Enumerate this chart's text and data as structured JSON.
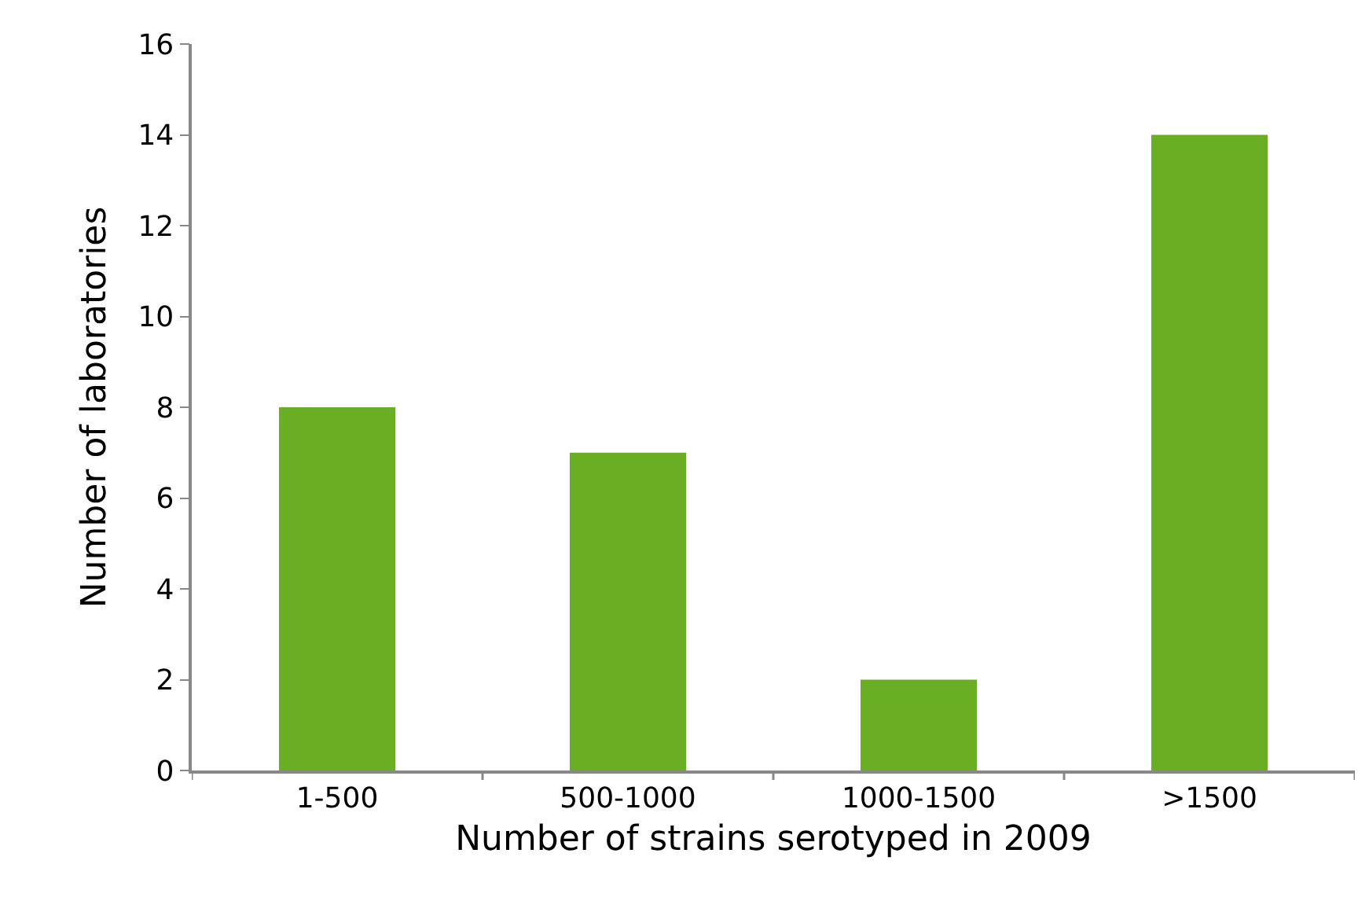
{
  "chart_data": {
    "type": "bar",
    "xlabel": "Number of strains serotyped in 2009",
    "ylabel": "Number of laboratories",
    "categories": [
      "1-500",
      "500-1000",
      "1000-1500",
      ">1500"
    ],
    "values": [
      8,
      7,
      2,
      14
    ],
    "color": "#6aaf23",
    "ylim": [
      0,
      16
    ],
    "yticks": [
      0,
      2,
      4,
      6,
      8,
      10,
      12,
      14,
      16
    ],
    "grid": false
  }
}
